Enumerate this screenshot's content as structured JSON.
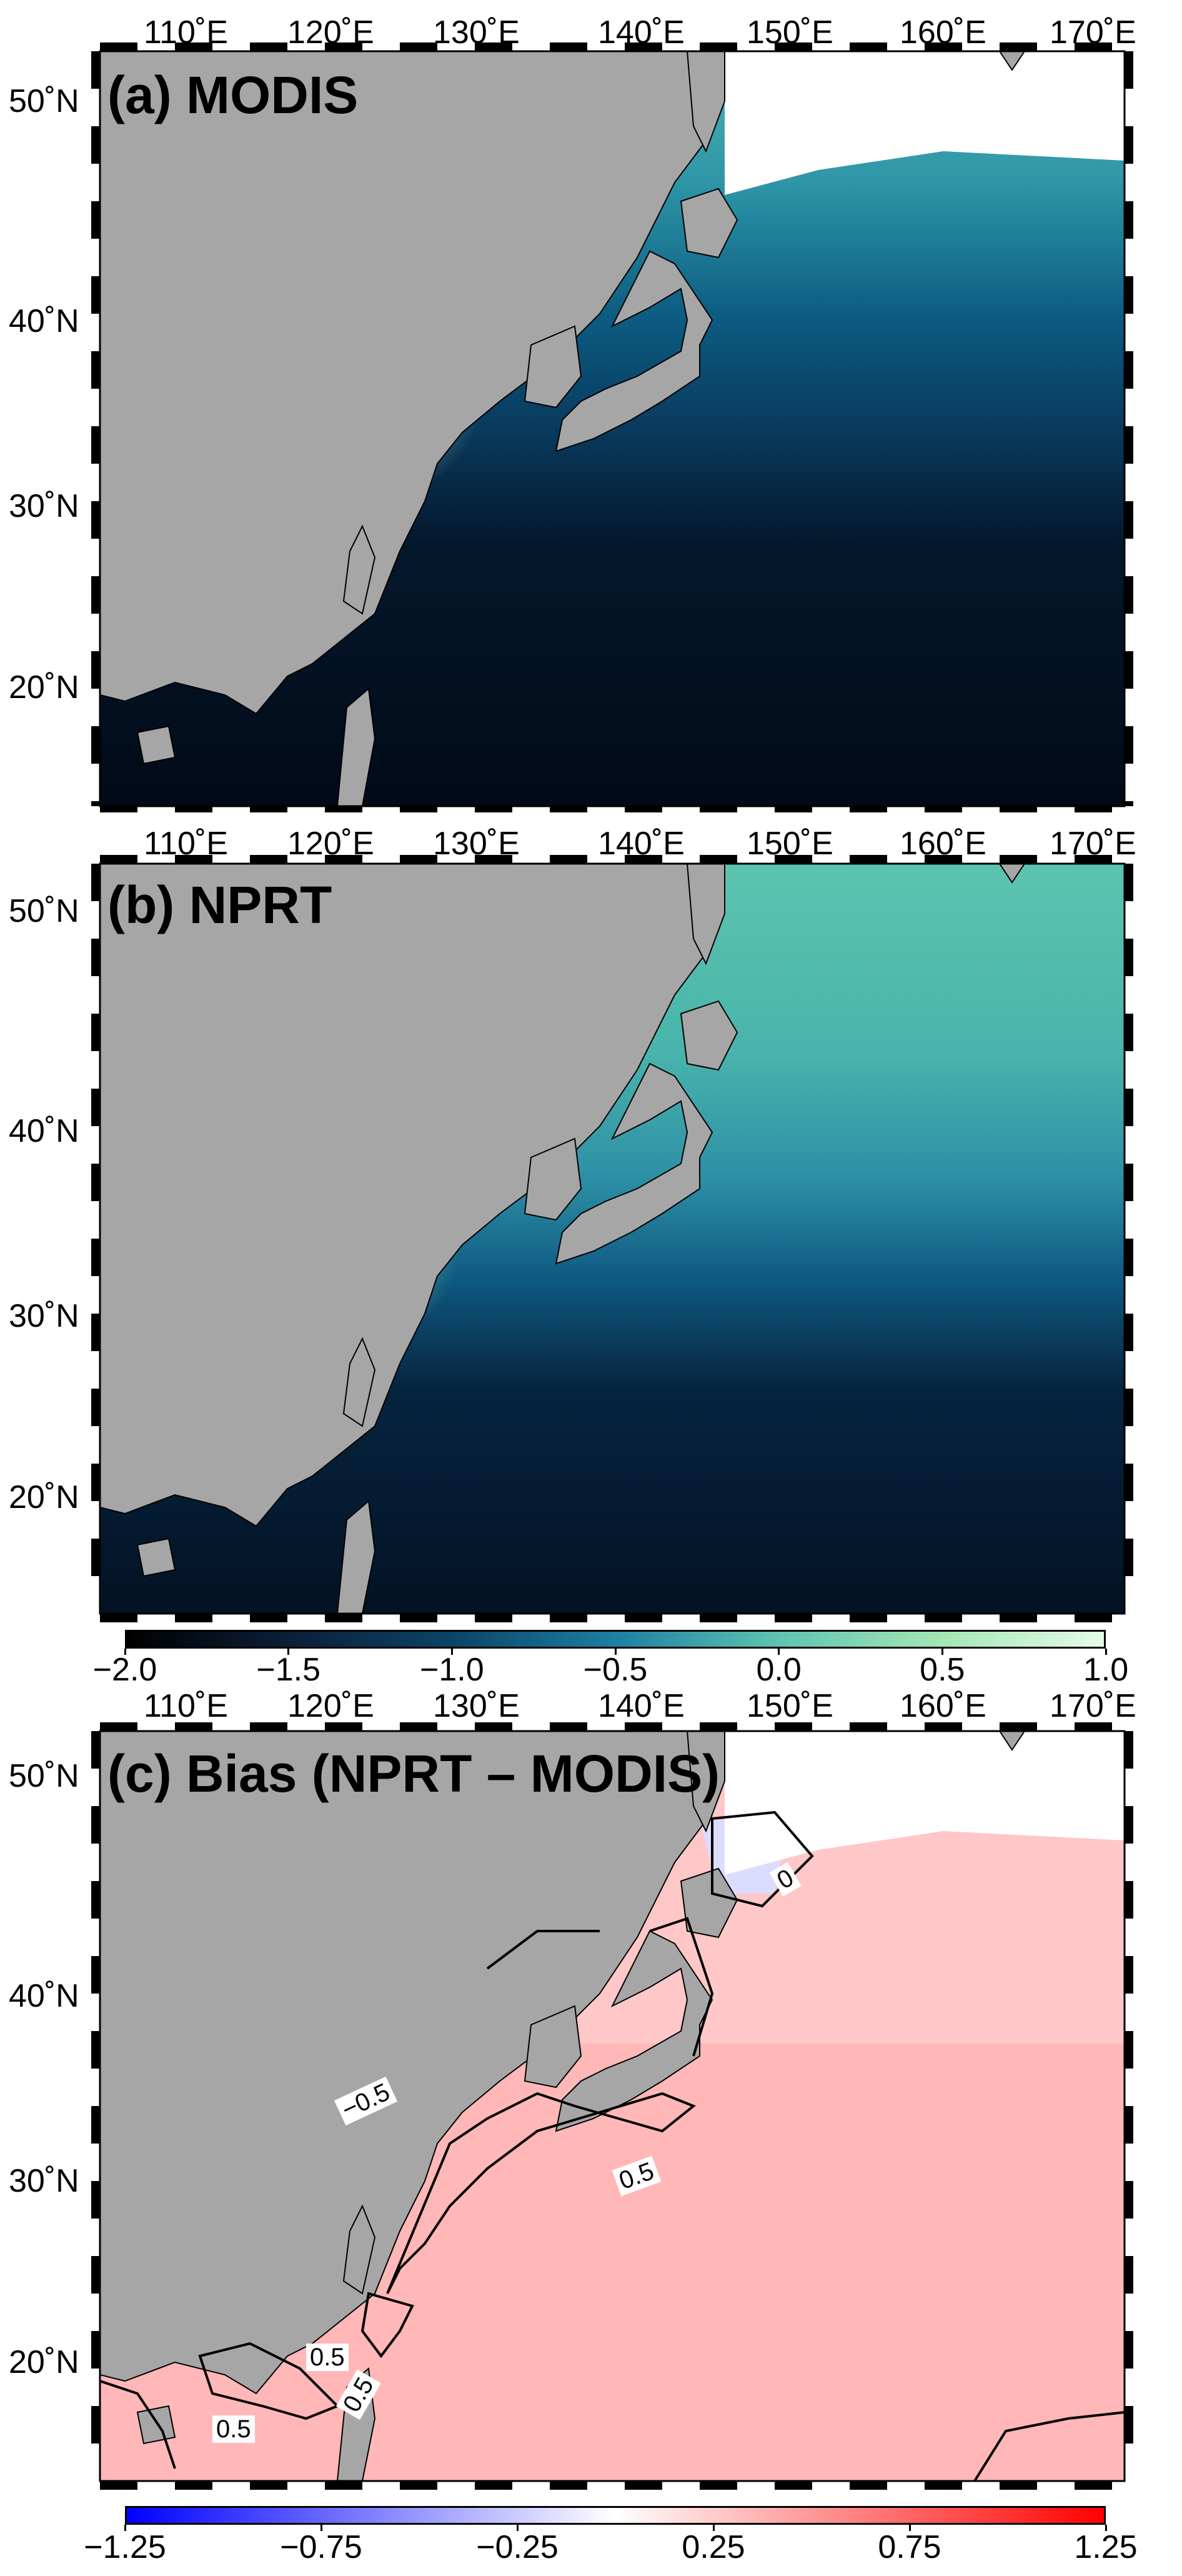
{
  "panels": {
    "a": {
      "title": "(a) MODIS"
    },
    "b": {
      "title": "(b) NPRT"
    },
    "c": {
      "title": "(c) Bias (NPRT – MODIS)"
    }
  },
  "lon_ticks": [
    "110˚E",
    "120˚E",
    "130˚E",
    "140˚E",
    "150˚E",
    "160˚E",
    "170˚E"
  ],
  "lat_ticks": [
    "50˚N",
    "40˚N",
    "30˚N",
    "20˚N"
  ],
  "colorbar_chl": {
    "ticks": [
      "−2.0",
      "−1.5",
      "−1.0",
      "−0.5",
      "0.0",
      "0.5",
      "1.0"
    ],
    "colors": [
      "#000000",
      "#0b1f38",
      "#0b4466",
      "#1d7fa3",
      "#5ec4b0",
      "#a4e6b4",
      "#e6fbe9"
    ]
  },
  "colorbar_bias": {
    "ticks": [
      "−1.25",
      "−0.75",
      "−0.25",
      "0.25",
      "0.75",
      "1.25"
    ],
    "colors": [
      "#0000ff",
      "#ffffff",
      "#ff0000"
    ]
  },
  "contour_labels": [
    "0.5",
    "0.5",
    "0.5",
    "0.5",
    "−0.5",
    "0"
  ],
  "colors": {
    "land": "#a6a6a6",
    "nodata": "#ffffff",
    "coastline": "#000000"
  }
}
